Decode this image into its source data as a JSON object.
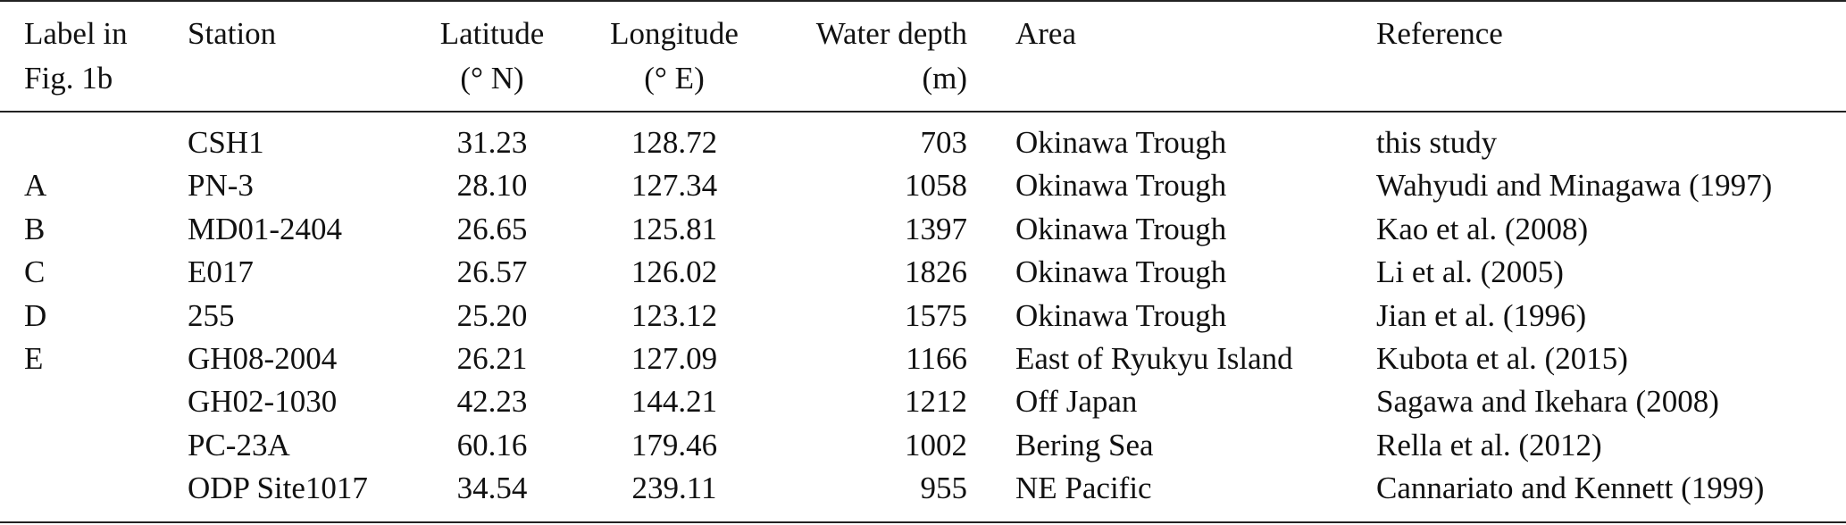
{
  "table": {
    "headers": {
      "label": [
        "Label in",
        "Fig. 1b"
      ],
      "station": "Station",
      "latitude": [
        "Latitude",
        "(° N)"
      ],
      "longitude": [
        "Longitude",
        "(° E)"
      ],
      "depth": [
        "Water depth",
        "(m)"
      ],
      "area": "Area",
      "reference": "Reference"
    },
    "rows": [
      {
        "label": "",
        "station": "CSH1",
        "lat": "31.23",
        "lon": "128.72",
        "depth": "703",
        "area": "Okinawa Trough",
        "reference": "this study"
      },
      {
        "label": "A",
        "station": "PN-3",
        "lat": "28.10",
        "lon": "127.34",
        "depth": "1058",
        "area": "Okinawa Trough",
        "reference": "Wahyudi and Minagawa (1997)"
      },
      {
        "label": "B",
        "station": "MD01-2404",
        "lat": "26.65",
        "lon": "125.81",
        "depth": "1397",
        "area": "Okinawa Trough",
        "reference": "Kao et al. (2008)"
      },
      {
        "label": "C",
        "station": "E017",
        "lat": "26.57",
        "lon": "126.02",
        "depth": "1826",
        "area": "Okinawa Trough",
        "reference": "Li et al. (2005)"
      },
      {
        "label": "D",
        "station": "255",
        "lat": "25.20",
        "lon": "123.12",
        "depth": "1575",
        "area": "Okinawa Trough",
        "reference": "Jian et al. (1996)"
      },
      {
        "label": "E",
        "station": "GH08-2004",
        "lat": "26.21",
        "lon": "127.09",
        "depth": "1166",
        "area": "East of Ryukyu Island",
        "reference": "Kubota et al. (2015)"
      },
      {
        "label": "",
        "station": "GH02-1030",
        "lat": "42.23",
        "lon": "144.21",
        "depth": "1212",
        "area": "Off Japan",
        "reference": "Sagawa and Ikehara (2008)"
      },
      {
        "label": "",
        "station": "PC-23A",
        "lat": "60.16",
        "lon": "179.46",
        "depth": "1002",
        "area": "Bering Sea",
        "reference": "Rella et al. (2012)"
      },
      {
        "label": "",
        "station": "ODP Site1017",
        "lat": "34.54",
        "lon": "239.11",
        "depth": "955",
        "area": "NE Pacific",
        "reference": "Cannariato and Kennett (1999)"
      }
    ]
  }
}
